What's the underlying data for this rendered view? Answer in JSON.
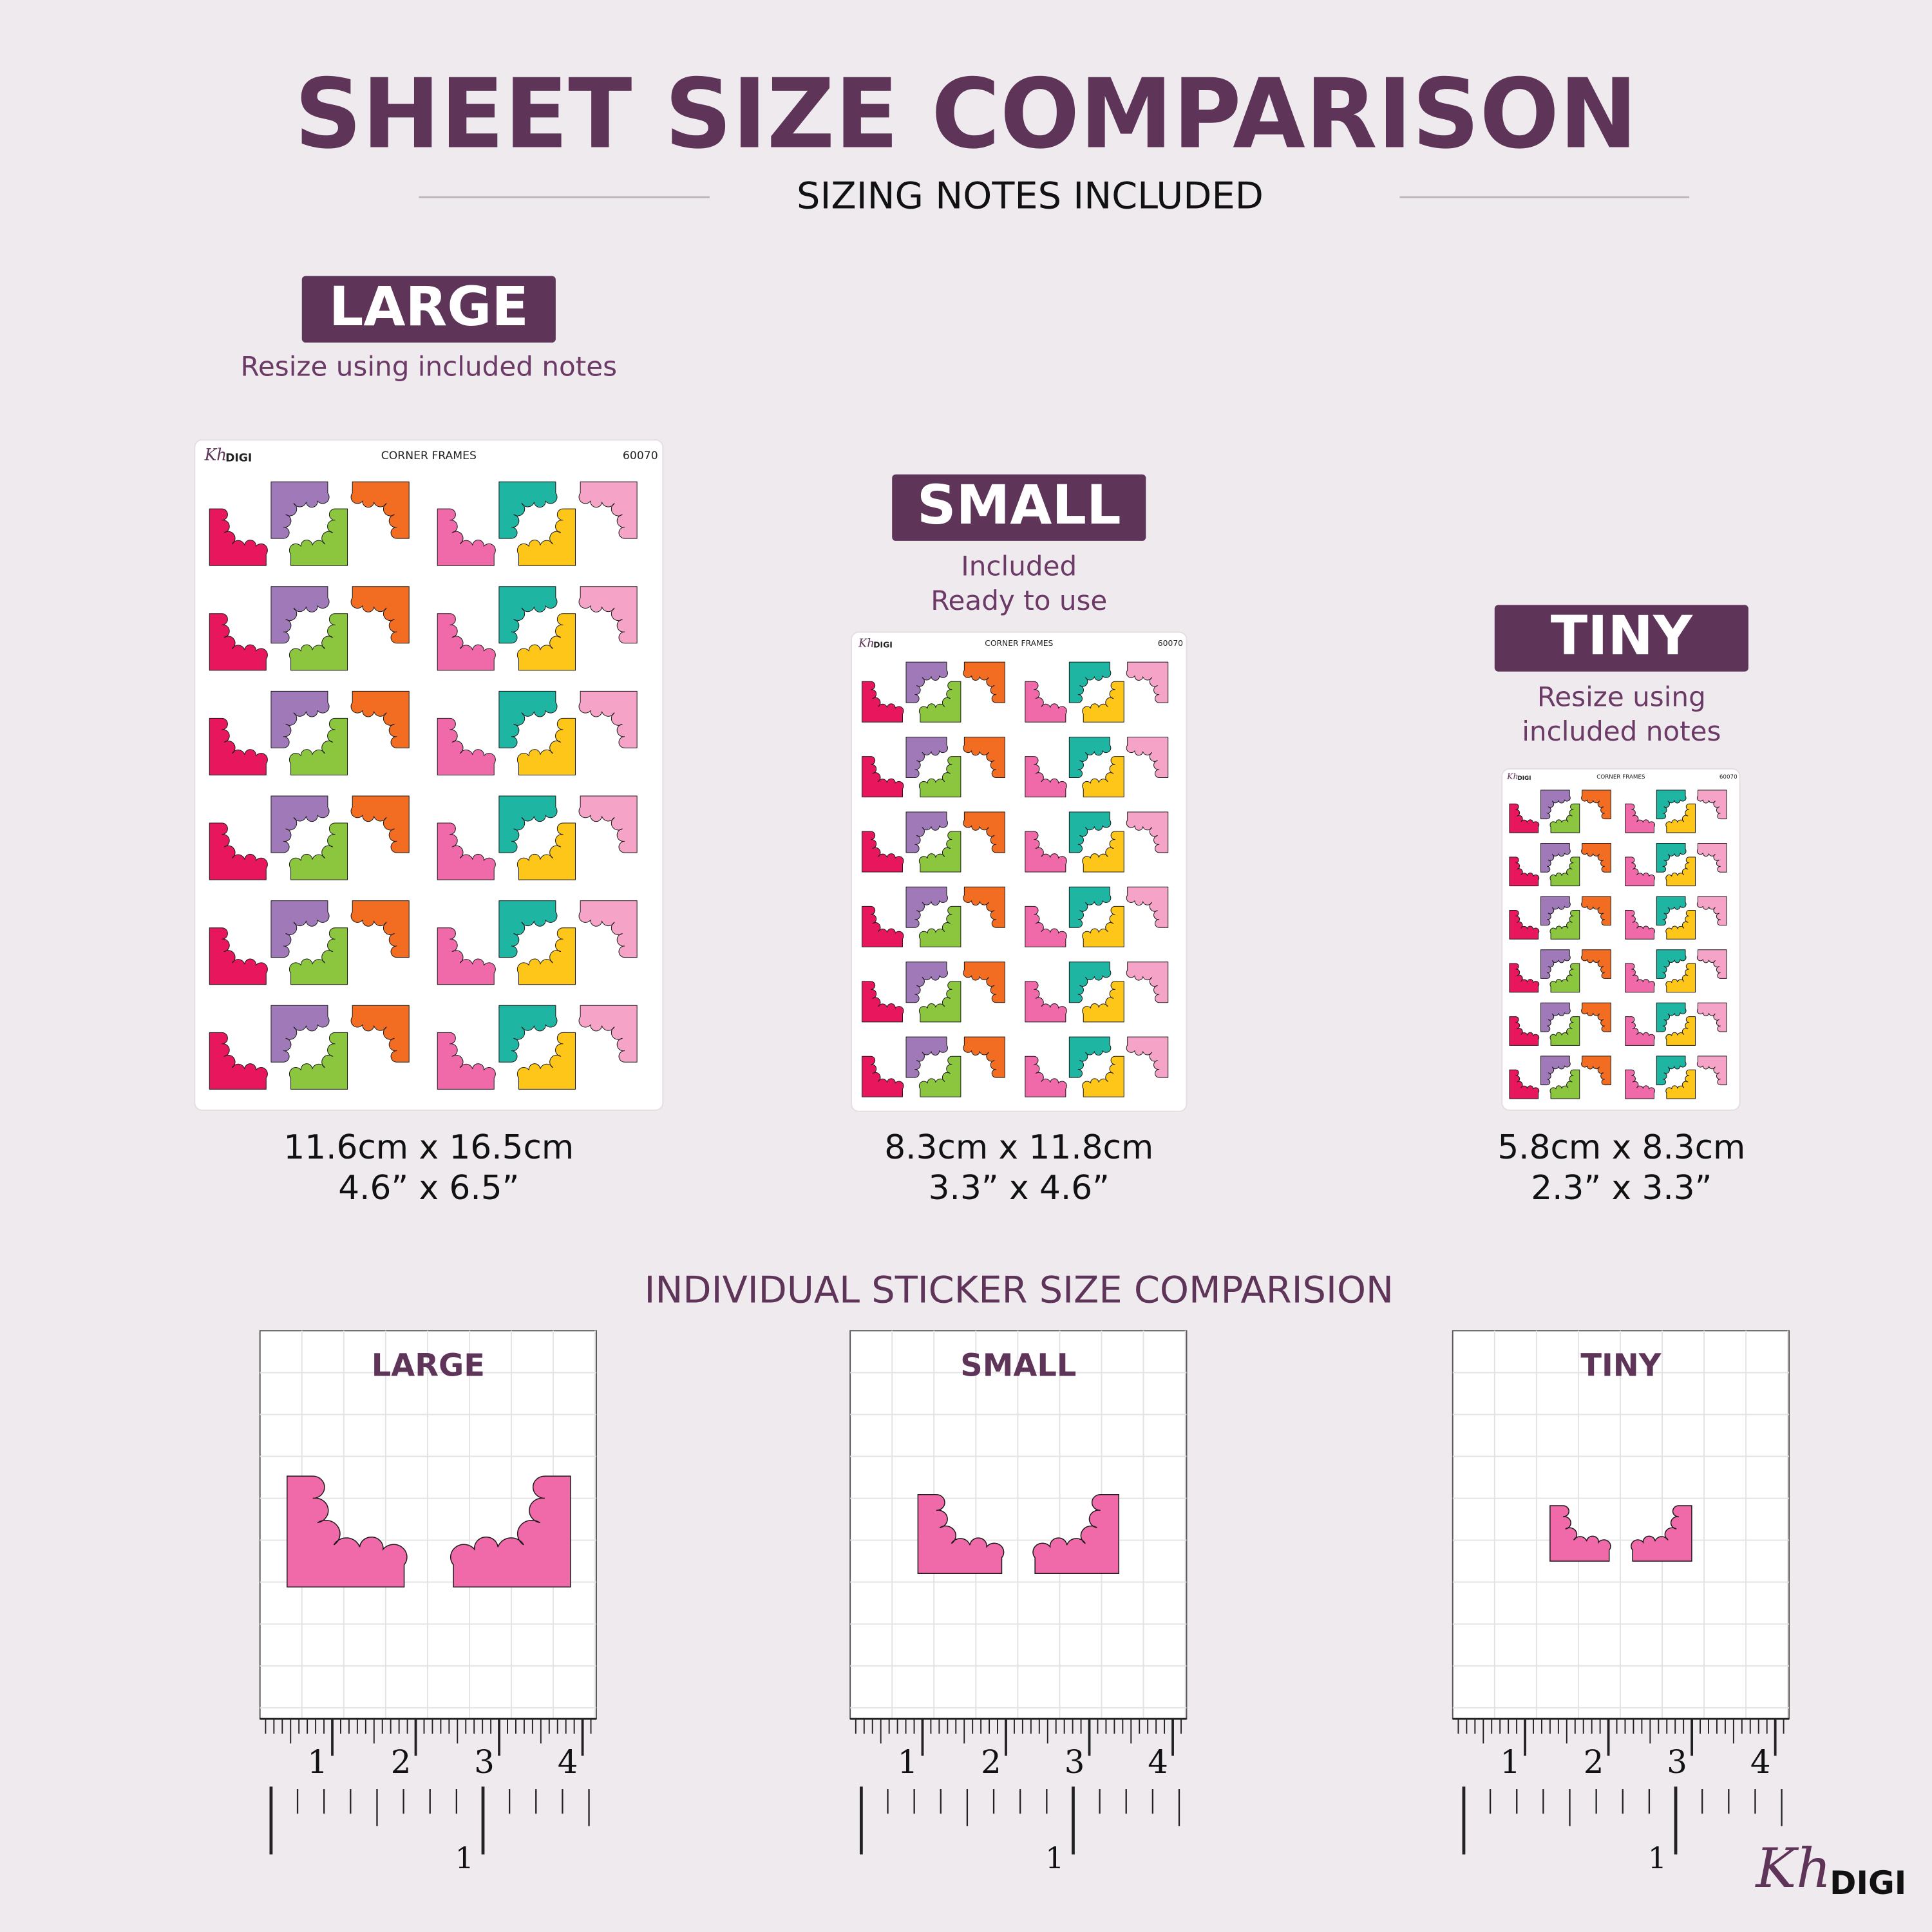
{
  "header": {
    "title": "SHEET SIZE COMPARISON",
    "subtitle": "SIZING NOTES INCLUDED"
  },
  "sheets": [
    {
      "label": "LARGE",
      "note": [
        "Resize using included notes"
      ],
      "metric": "11.6cm x 16.5cm",
      "imperial": "4.6” x 6.5”"
    },
    {
      "label": "SMALL",
      "note": [
        "Included",
        "Ready to use"
      ],
      "metric": "8.3cm x 11.8cm",
      "imperial": "3.3” x 4.6”"
    },
    {
      "label": "TINY",
      "note": [
        "Resize using",
        "included notes"
      ],
      "metric": "5.8cm x 8.3cm",
      "imperial": "2.3” x 3.3”"
    }
  ],
  "sheet_header": {
    "brand_script": "Kh",
    "brand": "DIGI",
    "name": "CORNER FRAMES",
    "code": "60070"
  },
  "individual": {
    "title": "INDIVIDUAL STICKER SIZE COMPARISION",
    "panels": [
      "LARGE",
      "SMALL",
      "TINY"
    ]
  },
  "ruler": {
    "cm": [
      "1",
      "2",
      "3",
      "4"
    ],
    "inch": "1"
  },
  "logo": {
    "script": "Kh",
    "text": "DIGI"
  }
}
